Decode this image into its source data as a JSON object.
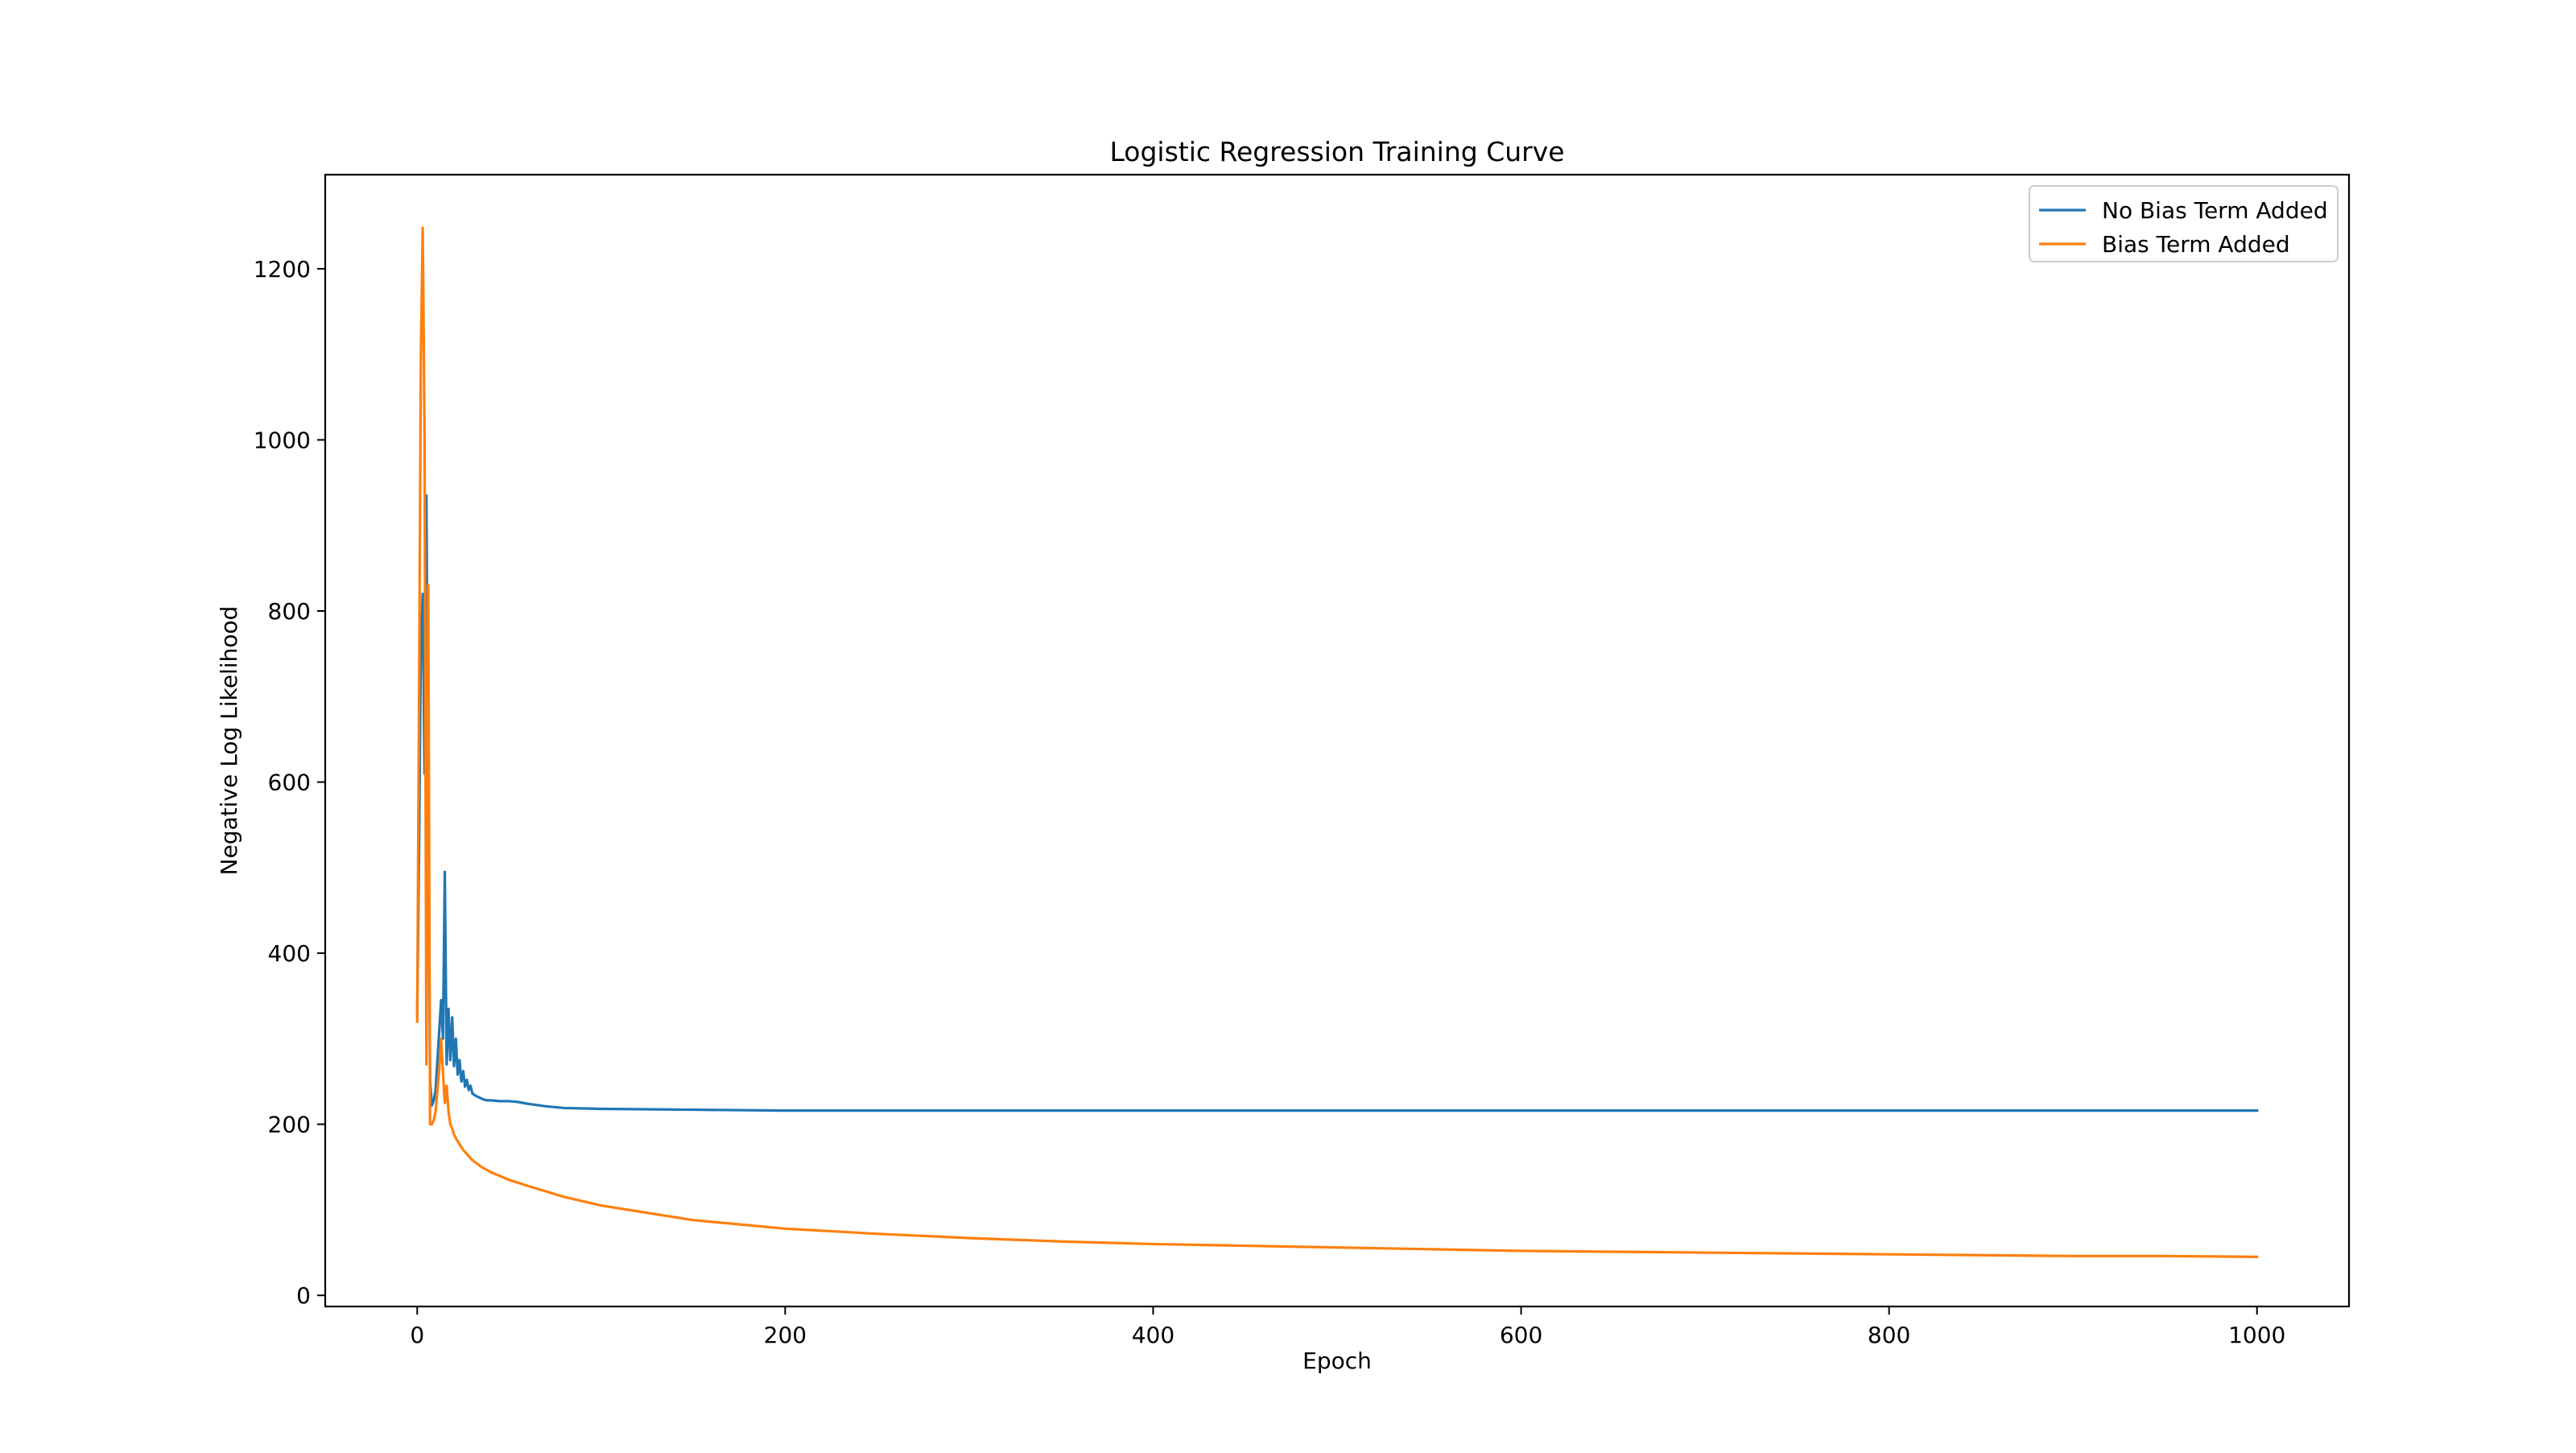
{
  "chart_data": {
    "type": "line",
    "title": "Logistic Regression Training Curve",
    "xlabel": "Epoch",
    "ylabel": "Negative Log Likelihood",
    "xlim": [
      -50,
      1050
    ],
    "ylim": [
      -13,
      1310
    ],
    "xticks": [
      0,
      200,
      400,
      600,
      800,
      1000
    ],
    "yticks": [
      0,
      200,
      400,
      600,
      800,
      1000,
      1200
    ],
    "grid": false,
    "legend_position": "top-right",
    "series": [
      {
        "name": "No Bias Term Added",
        "color": "#1f77b4",
        "points": [
          [
            0,
            330
          ],
          [
            1,
            520
          ],
          [
            2,
            760
          ],
          [
            3,
            820
          ],
          [
            4,
            610
          ],
          [
            5,
            935
          ],
          [
            6,
            560
          ],
          [
            7,
            250
          ],
          [
            8,
            222
          ],
          [
            9,
            228
          ],
          [
            10,
            240
          ],
          [
            11,
            275
          ],
          [
            12,
            310
          ],
          [
            13,
            345
          ],
          [
            14,
            300
          ],
          [
            15,
            495
          ],
          [
            16,
            270
          ],
          [
            17,
            335
          ],
          [
            18,
            275
          ],
          [
            19,
            325
          ],
          [
            20,
            268
          ],
          [
            21,
            300
          ],
          [
            22,
            258
          ],
          [
            23,
            275
          ],
          [
            24,
            250
          ],
          [
            25,
            262
          ],
          [
            26,
            244
          ],
          [
            27,
            252
          ],
          [
            28,
            240
          ],
          [
            29,
            245
          ],
          [
            30,
            236
          ],
          [
            32,
            233
          ],
          [
            34,
            231
          ],
          [
            36,
            229
          ],
          [
            38,
            228
          ],
          [
            40,
            228
          ],
          [
            45,
            227
          ],
          [
            50,
            227
          ],
          [
            55,
            226
          ],
          [
            60,
            224
          ],
          [
            70,
            221
          ],
          [
            80,
            219
          ],
          [
            100,
            218
          ],
          [
            150,
            217
          ],
          [
            200,
            216
          ],
          [
            300,
            216
          ],
          [
            400,
            216
          ],
          [
            500,
            216
          ],
          [
            600,
            216
          ],
          [
            700,
            216
          ],
          [
            800,
            216
          ],
          [
            900,
            216
          ],
          [
            1000,
            216
          ]
        ]
      },
      {
        "name": "Bias Term Added",
        "color": "#ff7f0e",
        "points": [
          [
            0,
            320
          ],
          [
            1,
            700
          ],
          [
            2,
            1100
          ],
          [
            3,
            1248
          ],
          [
            4,
            1000
          ],
          [
            5,
            270
          ],
          [
            6,
            830
          ],
          [
            7,
            200
          ],
          [
            8,
            200
          ],
          [
            9,
            205
          ],
          [
            10,
            215
          ],
          [
            11,
            240
          ],
          [
            12,
            265
          ],
          [
            13,
            300
          ],
          [
            14,
            260
          ],
          [
            15,
            225
          ],
          [
            16,
            245
          ],
          [
            17,
            215
          ],
          [
            18,
            200
          ],
          [
            19,
            195
          ],
          [
            20,
            188
          ],
          [
            22,
            180
          ],
          [
            25,
            170
          ],
          [
            30,
            158
          ],
          [
            35,
            150
          ],
          [
            40,
            144
          ],
          [
            50,
            135
          ],
          [
            60,
            128
          ],
          [
            80,
            115
          ],
          [
            100,
            105
          ],
          [
            150,
            88
          ],
          [
            200,
            78
          ],
          [
            250,
            72
          ],
          [
            300,
            67
          ],
          [
            350,
            63
          ],
          [
            400,
            60
          ],
          [
            450,
            58
          ],
          [
            500,
            56
          ],
          [
            550,
            54
          ],
          [
            600,
            52
          ],
          [
            650,
            51
          ],
          [
            700,
            50
          ],
          [
            750,
            49
          ],
          [
            800,
            48
          ],
          [
            850,
            47
          ],
          [
            900,
            46
          ],
          [
            950,
            46
          ],
          [
            1000,
            45
          ]
        ]
      }
    ]
  }
}
